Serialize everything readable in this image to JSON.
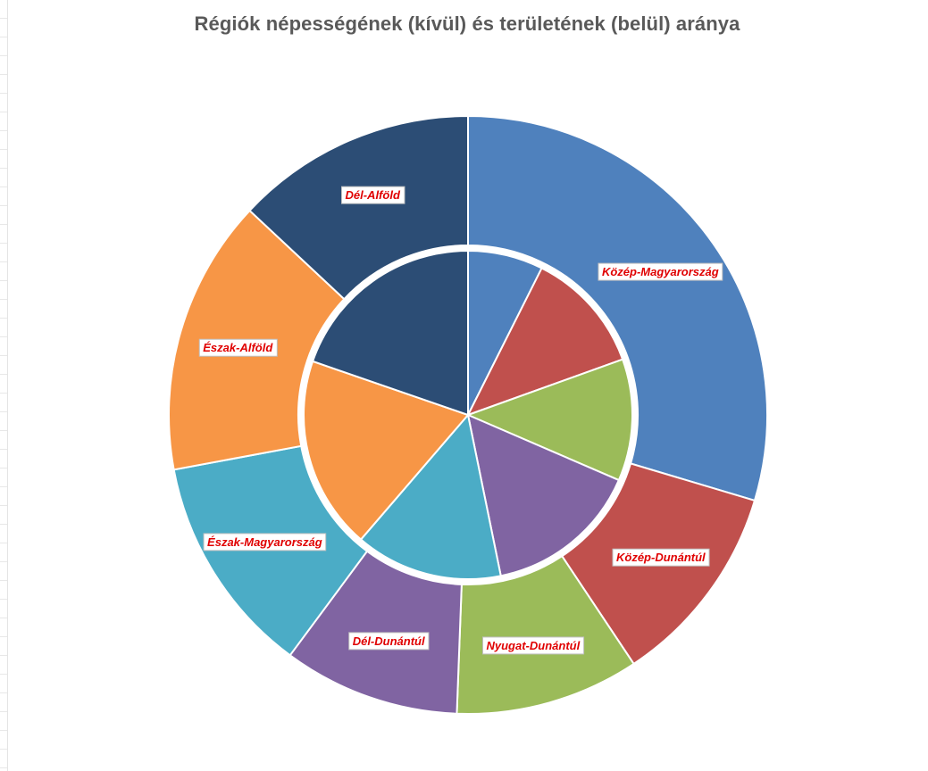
{
  "chart_data": {
    "type": "donut",
    "title": "Régiók népességének (kívül) és területének (belül) aránya",
    "categories": [
      "Közép-Magyarország",
      "Közép-Dunántúl",
      "Nyugat-Dunántúl",
      "Dél-Dunántúl",
      "Észak-Magyarország",
      "Észak-Alföld",
      "Dél-Alföld"
    ],
    "series": [
      {
        "ring": "outer",
        "measure": "népesség",
        "values": [
          29.8,
          11.1,
          10.0,
          9.6,
          12.0,
          15.0,
          13.1
        ]
      },
      {
        "ring": "inner",
        "measure": "terület",
        "values": [
          7.4,
          12.1,
          12.0,
          15.3,
          14.5,
          19.0,
          19.7
        ]
      }
    ],
    "colors": [
      "#4f81bd",
      "#c0504d",
      "#9bbb59",
      "#8064a2",
      "#4bacc6",
      "#f79646",
      "#2c4d75"
    ],
    "label_color": "#e00000",
    "legend": "none",
    "start_angle_deg": 0,
    "direction": "clockwise",
    "data_labels_on": "outer"
  }
}
